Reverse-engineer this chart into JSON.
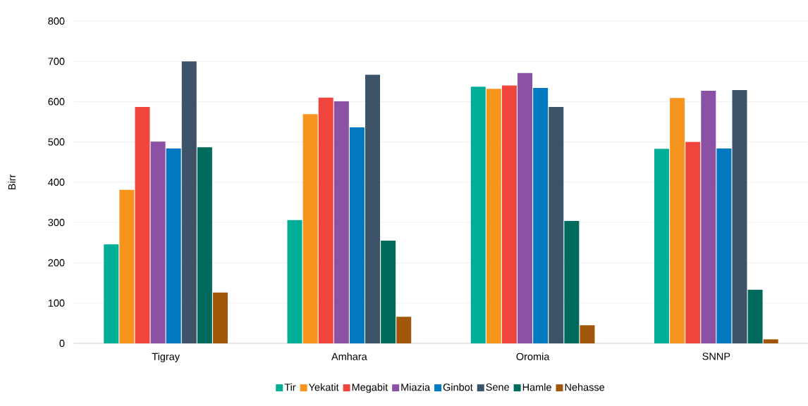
{
  "chart_data": {
    "type": "bar",
    "ylabel": "Birr",
    "categories": [
      "Tigray",
      "Amhara",
      "Oromia",
      "SNNP"
    ],
    "series": [
      {
        "name": "Tir",
        "color": "#00ae98",
        "values": [
          246,
          306,
          637,
          483
        ]
      },
      {
        "name": "Yekatit",
        "color": "#f7941d",
        "values": [
          381,
          569,
          632,
          609
        ]
      },
      {
        "name": "Megabit",
        "color": "#ef453c",
        "values": [
          587,
          610,
          640,
          500
        ]
      },
      {
        "name": "Miazia",
        "color": "#8b51a5",
        "values": [
          501,
          601,
          671,
          627
        ]
      },
      {
        "name": "Ginbot",
        "color": "#0079c1",
        "values": [
          484,
          536,
          634,
          484
        ]
      },
      {
        "name": "Sene",
        "color": "#3d5367",
        "values": [
          700,
          667,
          587,
          629
        ]
      },
      {
        "name": "Hamle",
        "color": "#006b5c",
        "values": [
          487,
          255,
          304,
          133
        ]
      },
      {
        "name": "Nehasse",
        "color": "#a0570a",
        "values": [
          126,
          66,
          45,
          10
        ]
      }
    ],
    "ylim": [
      0,
      800
    ],
    "yticks": [
      0,
      100,
      200,
      300,
      400,
      500,
      600,
      700,
      800
    ],
    "grid": "y",
    "legend": "bottom"
  }
}
